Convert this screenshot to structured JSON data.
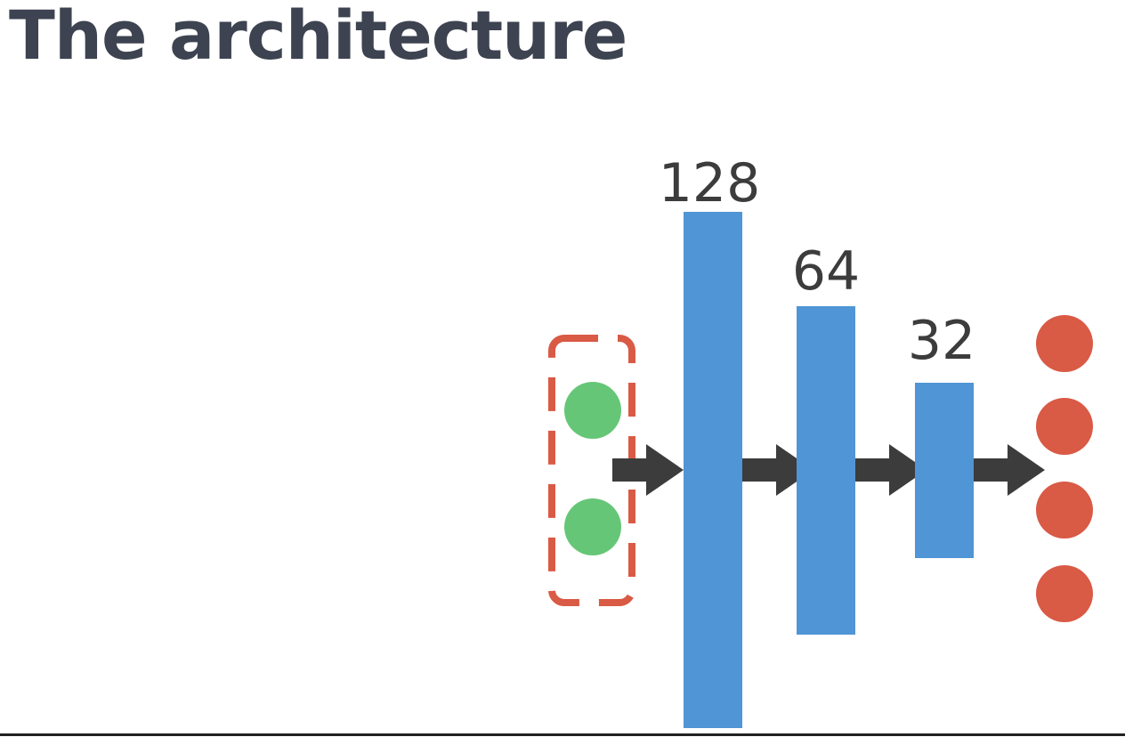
{
  "slide": {
    "title": "The architecture"
  },
  "diagram": {
    "input_nodes": 2,
    "hidden_layers": [
      {
        "label": "128",
        "units": 128
      },
      {
        "label": "64",
        "units": 64
      },
      {
        "label": "32",
        "units": 32
      }
    ],
    "output_nodes": 4,
    "colors": {
      "input_node": "#66c677",
      "input_group_border": "#d95a45",
      "layer_bar": "#5095d5",
      "arrow": "#3c3c3c",
      "output_node": "#d95a45",
      "title": "#3d4350"
    }
  }
}
